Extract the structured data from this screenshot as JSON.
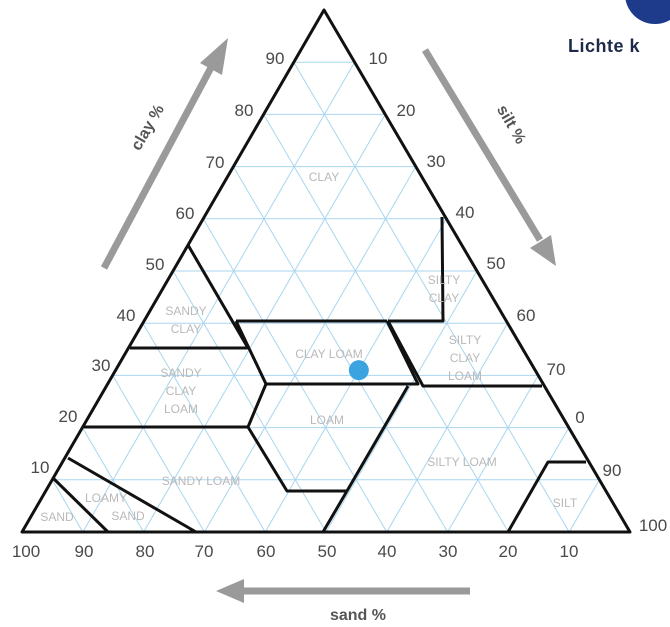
{
  "header": {
    "text": "Lichte k",
    "badge_color": "#1e3a8a"
  },
  "axes": {
    "clay": {
      "title": "clay %",
      "ticks": [
        "10",
        "20",
        "30",
        "40",
        "50",
        "60",
        "70",
        "80",
        "90"
      ]
    },
    "silt": {
      "title": "silt %",
      "ticks": [
        "10",
        "20",
        "30",
        "40",
        "50",
        "60",
        "70",
        "0",
        "90",
        "100"
      ]
    },
    "sand": {
      "title": "sand %",
      "ticks": [
        "100",
        "90",
        "80",
        "70",
        "60",
        "50",
        "40",
        "30",
        "20",
        "10"
      ]
    }
  },
  "regions": {
    "clay": [
      "CLAY"
    ],
    "silty_clay": [
      "SILTY",
      "CLAY"
    ],
    "sandy_clay": [
      "SANDY",
      "CLAY"
    ],
    "clay_loam": [
      "CLAY LOAM"
    ],
    "silty_clay_loam": [
      "SILTY",
      "CLAY",
      "LOAM"
    ],
    "sandy_clay_loam": [
      "SANDY",
      "CLAY",
      "LOAM"
    ],
    "loam": [
      "LOAM"
    ],
    "silty_loam": [
      "SILTY LOAM"
    ],
    "sandy_loam": [
      "SANDY LOAM"
    ],
    "loamy_sand": [
      "LOAMY",
      "SAND"
    ],
    "sand": [
      "SAND"
    ],
    "silt": [
      "SILT"
    ]
  },
  "sample_point": {
    "clay": 31,
    "silt": 40,
    "sand": 29,
    "color": "#3aa3e0"
  },
  "colors": {
    "grid": "#a9d6ef",
    "boundary": "#111111",
    "arrow": "#9a9a9a",
    "region_text": "#b9b9b9"
  }
}
